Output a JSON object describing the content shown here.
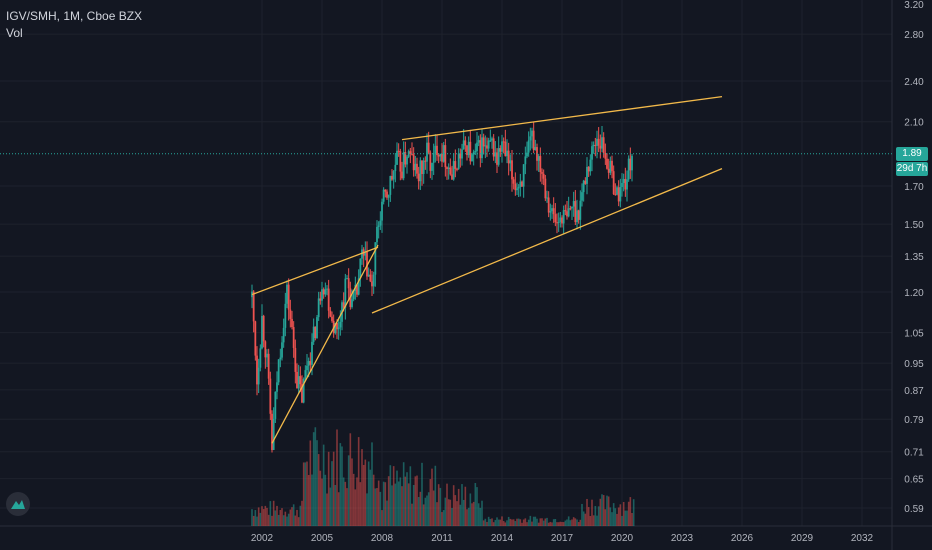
{
  "header": {
    "symbol_line": "IGV/SMH, 1M, Cboe BZX",
    "volume_label": "Vol"
  },
  "price_label": {
    "value": "1.89",
    "color": "#26a69a"
  },
  "countdown_label": {
    "value": "29d 7h",
    "color": "#26a69a"
  },
  "colors": {
    "background": "#131722",
    "grid": "#1e222d",
    "up": "#26a69a",
    "down": "#ef5350",
    "trendline": "#f2b94a",
    "axis_text": "#b2b5be"
  },
  "icons": {
    "logo": "tradingview-logo-icon"
  },
  "chart_data": {
    "type": "candlestick",
    "title": "IGV/SMH, 1M, Cboe BZX",
    "x_ticks": [
      "2002",
      "2005",
      "2008",
      "2011",
      "2014",
      "2017",
      "2020",
      "2023",
      "2026",
      "2029",
      "2032"
    ],
    "y_ticks": [
      "3.20",
      "2.80",
      "2.40",
      "2.10",
      "1.89",
      "1.70",
      "1.50",
      "1.35",
      "1.20",
      "1.05",
      "0.95",
      "0.87",
      "0.79",
      "0.71",
      "0.65",
      "0.59"
    ],
    "y_scale": "log",
    "x_range": [
      2001.0,
      2036.5
    ],
    "y_range": [
      0.55,
      3.2
    ],
    "grid": true,
    "last_price": 1.89,
    "close_path": [
      [
        2001.5,
        1.18
      ],
      [
        2001.75,
        0.9
      ],
      [
        2002.0,
        1.1
      ],
      [
        2002.25,
        0.95
      ],
      [
        2002.5,
        0.72
      ],
      [
        2002.75,
        0.9
      ],
      [
        2003.0,
        1.05
      ],
      [
        2003.25,
        1.2
      ],
      [
        2003.5,
        1.05
      ],
      [
        2003.75,
        0.9
      ],
      [
        2004.0,
        0.85
      ],
      [
        2004.25,
        0.95
      ],
      [
        2004.5,
        1.0
      ],
      [
        2004.75,
        1.1
      ],
      [
        2005.0,
        1.25
      ],
      [
        2005.25,
        1.2
      ],
      [
        2005.5,
        1.1
      ],
      [
        2005.75,
        1.05
      ],
      [
        2006.0,
        1.15
      ],
      [
        2006.25,
        1.25
      ],
      [
        2006.5,
        1.15
      ],
      [
        2006.75,
        1.2
      ],
      [
        2007.0,
        1.35
      ],
      [
        2007.25,
        1.3
      ],
      [
        2007.5,
        1.2
      ],
      [
        2007.75,
        1.45
      ],
      [
        2008.0,
        1.6
      ],
      [
        2008.25,
        1.65
      ],
      [
        2008.5,
        1.75
      ],
      [
        2008.75,
        1.85
      ],
      [
        2009.0,
        1.8
      ],
      [
        2009.25,
        1.9
      ],
      [
        2009.5,
        1.85
      ],
      [
        2009.75,
        1.75
      ],
      [
        2010.0,
        1.8
      ],
      [
        2010.25,
        1.9
      ],
      [
        2010.5,
        1.8
      ],
      [
        2010.75,
        1.95
      ],
      [
        2011.0,
        1.9
      ],
      [
        2011.25,
        1.85
      ],
      [
        2011.5,
        1.75
      ],
      [
        2011.75,
        1.85
      ],
      [
        2012.0,
        1.9
      ],
      [
        2012.25,
        1.95
      ],
      [
        2012.5,
        1.85
      ],
      [
        2012.75,
        1.9
      ],
      [
        2013.0,
        1.95
      ],
      [
        2013.25,
        1.9
      ],
      [
        2013.5,
        1.95
      ],
      [
        2013.75,
        1.85
      ],
      [
        2014.0,
        1.95
      ],
      [
        2014.25,
        1.85
      ],
      [
        2014.5,
        1.75
      ],
      [
        2014.75,
        1.7
      ],
      [
        2015.0,
        1.75
      ],
      [
        2015.25,
        1.85
      ],
      [
        2015.5,
        2.0
      ],
      [
        2015.75,
        1.9
      ],
      [
        2016.0,
        1.8
      ],
      [
        2016.25,
        1.65
      ],
      [
        2016.5,
        1.55
      ],
      [
        2016.75,
        1.5
      ],
      [
        2017.0,
        1.55
      ],
      [
        2017.25,
        1.52
      ],
      [
        2017.5,
        1.6
      ],
      [
        2017.75,
        1.55
      ],
      [
        2018.0,
        1.65
      ],
      [
        2018.25,
        1.8
      ],
      [
        2018.5,
        1.9
      ],
      [
        2018.75,
        2.0
      ],
      [
        2019.0,
        1.95
      ],
      [
        2019.25,
        1.85
      ],
      [
        2019.5,
        1.75
      ],
      [
        2019.75,
        1.65
      ],
      [
        2020.0,
        1.7
      ],
      [
        2020.25,
        1.75
      ],
      [
        2020.5,
        1.89
      ]
    ],
    "trendlines": [
      {
        "name": "upper-channel",
        "points": [
          [
            2009.0,
            1.98
          ],
          [
            2025.0,
            2.28
          ]
        ]
      },
      {
        "name": "lower-channel",
        "points": [
          [
            2007.5,
            1.12
          ],
          [
            2025.0,
            1.8
          ]
        ]
      },
      {
        "name": "early-wedge-upper",
        "points": [
          [
            2001.5,
            1.19
          ],
          [
            2007.8,
            1.39
          ]
        ]
      },
      {
        "name": "early-wedge-lower",
        "points": [
          [
            2002.5,
            0.73
          ],
          [
            2007.8,
            1.4
          ]
        ]
      }
    ]
  }
}
